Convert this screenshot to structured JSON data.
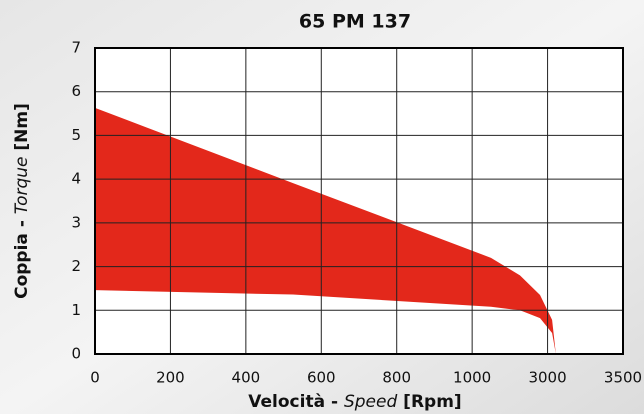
{
  "chart_data": {
    "type": "area_band",
    "title": "65 PM 137",
    "xlabel": [
      "Velocità - ",
      "Speed",
      " [Rpm]"
    ],
    "ylabel": [
      "Coppia - ",
      "Torque",
      " [Nm]"
    ],
    "x": [
      0,
      525,
      1500,
      2268,
      2800,
      3030,
      3055
    ],
    "upper": [
      5.63,
      3.91,
      2.2,
      1.8,
      1.35,
      0.78,
      0
    ],
    "lower": [
      1.46,
      1.36,
      1.08,
      1.0,
      0.82,
      0.48,
      0
    ],
    "color": "#e3281b",
    "xlim": [
      0,
      3500
    ],
    "xticks": [
      0,
      200,
      400,
      600,
      800,
      1000,
      3000,
      3500
    ],
    "ylim": [
      0,
      7
    ],
    "yticks": [
      0,
      1,
      2,
      3,
      4,
      5,
      6,
      7
    ],
    "grid": true
  }
}
